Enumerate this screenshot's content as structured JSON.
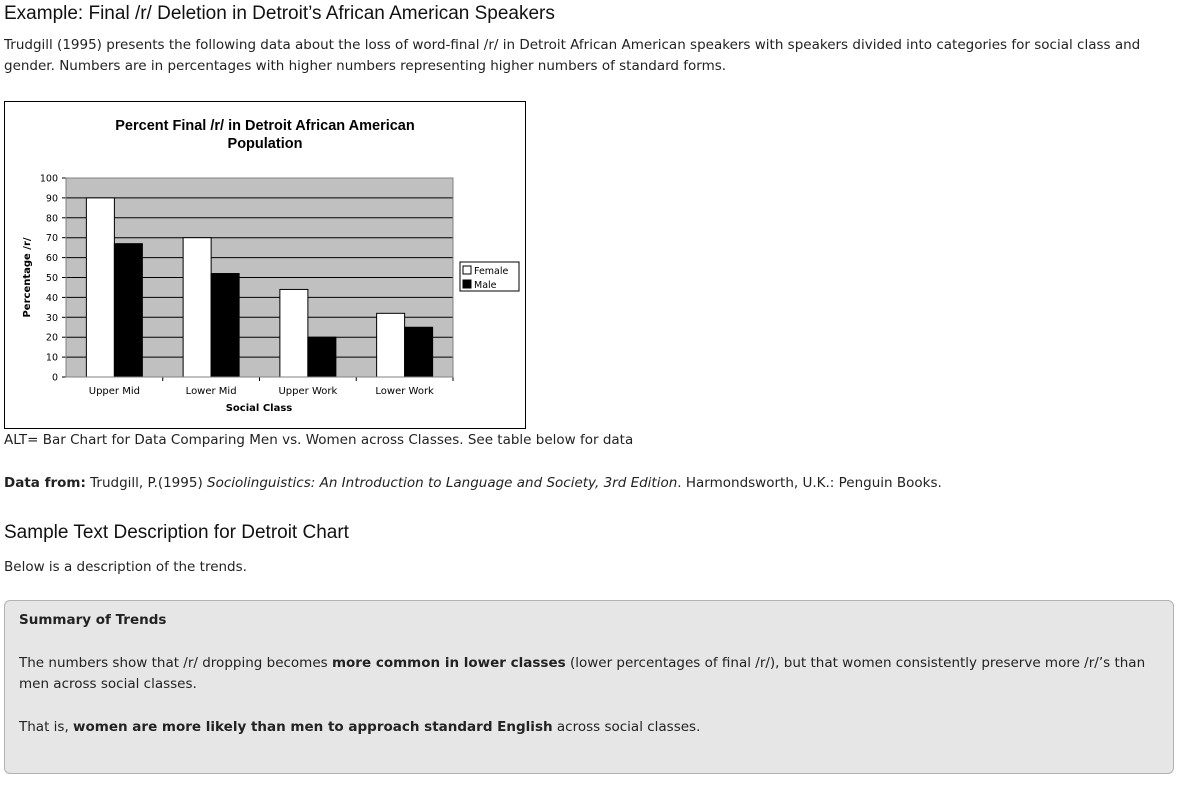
{
  "heading": "Example: Final /r/ Deletion in Detroit’s African American Speakers",
  "intro": "Trudgill (1995) presents the following data about the loss of word-final /r/ in Detroit African American speakers with speakers divided into categories for social class and gender. Numbers are in percentages with higher numbers representing higher numbers of standard forms.",
  "alt_text": "ALT= Bar Chart for Data Comparing Men vs. Women across Classes. See table below for data",
  "source": {
    "label": "Data from:",
    "author": "Trudgill, P.(1995)",
    "title": "Sociolinguistics: An Introduction to Language and Society, 3rd Edition",
    "publisher": ". Harmondsworth, U.K.: Penguin Books."
  },
  "sample_heading": "Sample Text Description for Detroit Chart",
  "description": "Below is a description of the trends.",
  "summary": {
    "title": "Summary of Trends",
    "p1_a": "The numbers show that /r/ dropping becomes ",
    "p1_b": "more common in lower classes",
    "p1_c": " (lower percentages of final /r/), but that women consistently preserve more /r/’s than men across social classes.",
    "p2_a": "That is, ",
    "p2_b": "women are more likely than men to approach standard English",
    "p2_c": " across social classes."
  },
  "chart_data": {
    "type": "bar",
    "title_lines": [
      "Percent Final /r/ in Detroit African American",
      "Population"
    ],
    "xlabel": "Social Class",
    "ylabel": "Percentage /r/",
    "categories": [
      "Upper Mid",
      "Lower Mid",
      "Upper Work",
      "Lower Work"
    ],
    "series": [
      {
        "name": "Female",
        "values": [
          90,
          70,
          44,
          32
        ],
        "color": "#ffffff"
      },
      {
        "name": "Male",
        "values": [
          67,
          52,
          20,
          25
        ],
        "color": "#000000"
      }
    ],
    "ylim": [
      0,
      100
    ],
    "yticks": [
      0,
      10,
      20,
      30,
      40,
      50,
      60,
      70,
      80,
      90,
      100
    ],
    "plot_background": "#c0c0c0",
    "grid": true,
    "legend": "right"
  }
}
